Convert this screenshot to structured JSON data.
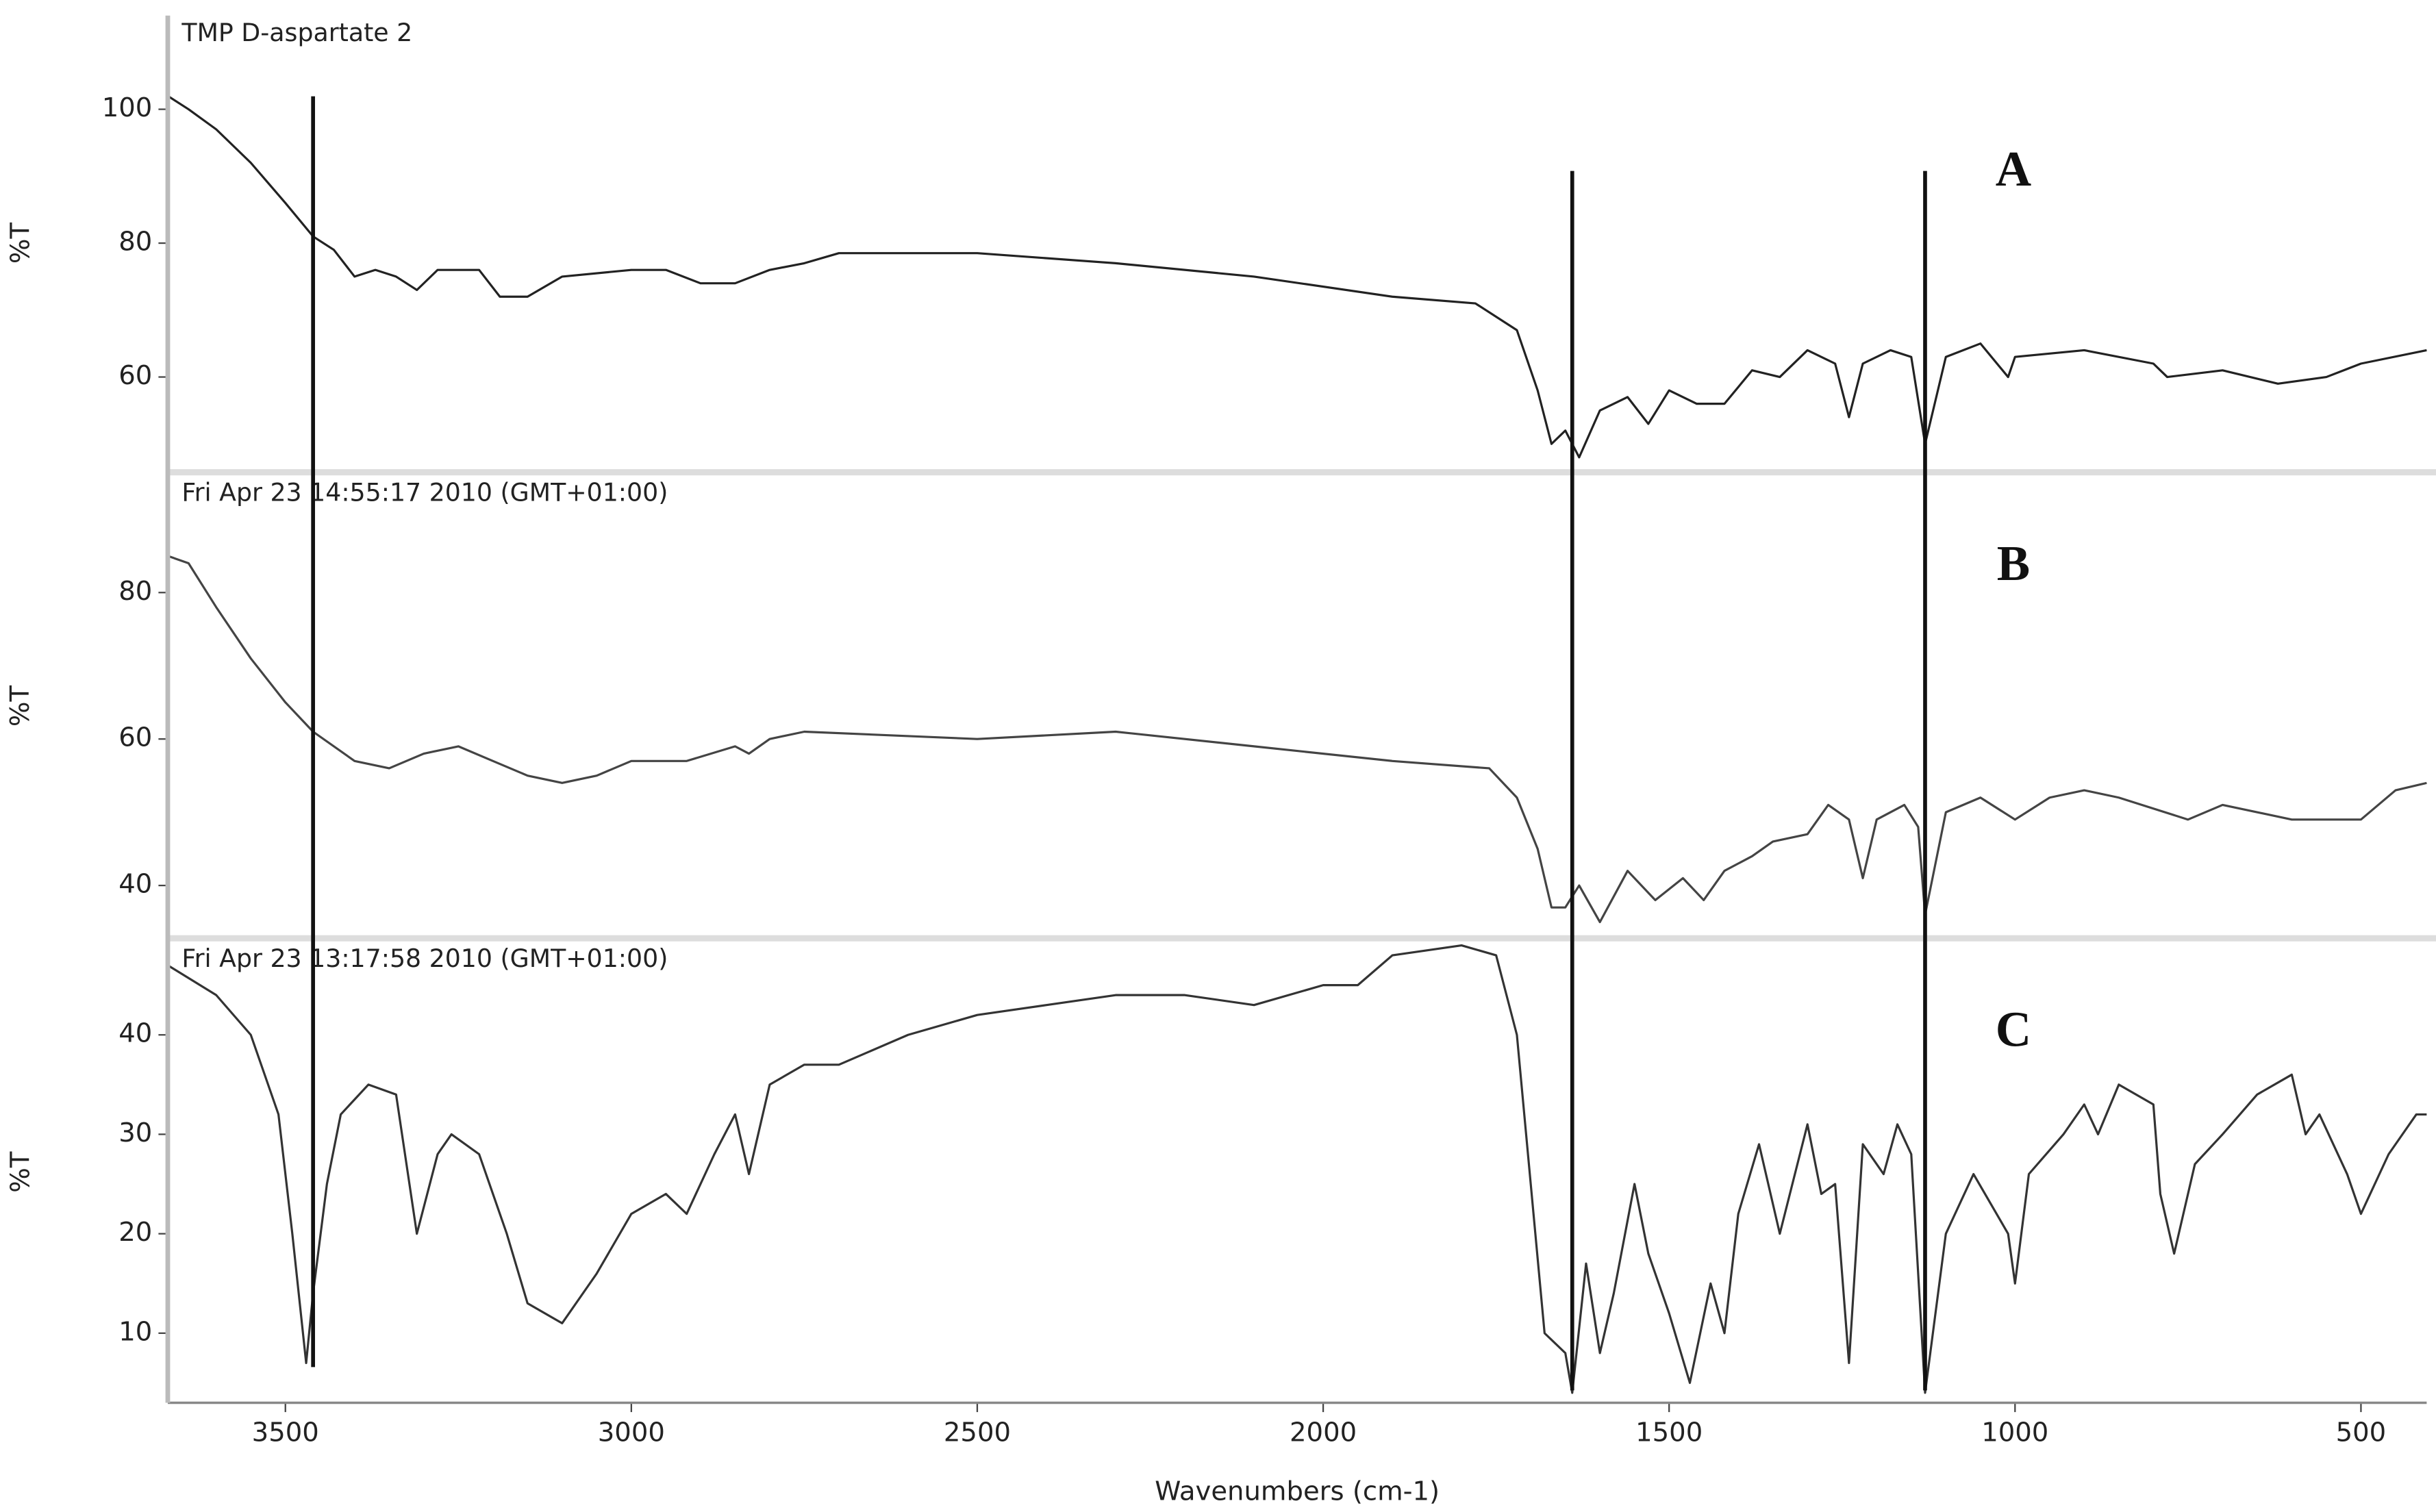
{
  "chart_data": [
    {
      "type": "line",
      "title": "TMP D-aspartate 2",
      "annotation": "A",
      "ylabel": "%T",
      "xlim": [
        3670,
        405
      ],
      "ylim": [
        46,
        114
      ],
      "yticks": [
        60,
        80,
        100
      ],
      "color": "#222222",
      "x": [
        3670,
        3640,
        3600,
        3550,
        3500,
        3460,
        3430,
        3400,
        3370,
        3340,
        3310,
        3280,
        3220,
        3190,
        3150,
        3100,
        3000,
        2950,
        2900,
        2850,
        2800,
        2750,
        2700,
        2500,
        2300,
        2100,
        1900,
        1780,
        1720,
        1690,
        1670,
        1650,
        1630,
        1600,
        1560,
        1530,
        1500,
        1460,
        1420,
        1380,
        1340,
        1300,
        1260,
        1240,
        1220,
        1180,
        1150,
        1130,
        1100,
        1050,
        1010,
        1000,
        900,
        800,
        780,
        700,
        620,
        550,
        500,
        405
      ],
      "values": [
        102,
        100,
        97,
        92,
        86,
        81,
        79,
        75,
        76,
        75,
        73,
        76,
        76,
        72,
        72,
        75,
        76,
        76,
        74,
        74,
        76,
        77,
        78.5,
        78.5,
        77,
        75,
        72,
        71,
        67,
        58,
        50,
        52,
        48,
        55,
        57,
        53,
        58,
        56,
        56,
        61,
        60,
        64,
        62,
        54,
        62,
        64,
        63,
        50,
        63,
        65,
        60,
        63,
        64,
        62,
        60,
        61,
        59,
        60,
        62,
        64
      ]
    },
    {
      "type": "line",
      "title": "Fri Apr 23 14:55:17 2010 (GMT+01:00)",
      "annotation": "B",
      "ylabel": "%T",
      "xlim": [
        3670,
        405
      ],
      "ylim": [
        33,
        96
      ],
      "yticks": [
        40,
        60,
        80
      ],
      "color": "#444444",
      "x": [
        3670,
        3640,
        3600,
        3550,
        3500,
        3460,
        3400,
        3350,
        3300,
        3250,
        3200,
        3150,
        3100,
        3050,
        3000,
        2920,
        2850,
        2830,
        2800,
        2750,
        2500,
        2300,
        2100,
        1900,
        1760,
        1720,
        1690,
        1670,
        1650,
        1630,
        1600,
        1560,
        1520,
        1480,
        1450,
        1420,
        1380,
        1350,
        1300,
        1270,
        1240,
        1220,
        1200,
        1160,
        1140,
        1130,
        1100,
        1050,
        1000,
        950,
        900,
        850,
        750,
        700,
        600,
        500,
        450,
        405
      ],
      "values": [
        85,
        84,
        78,
        71,
        65,
        61,
        57,
        56,
        58,
        59,
        57,
        55,
        54,
        55,
        57,
        57,
        59,
        58,
        60,
        61,
        60,
        61,
        59,
        57,
        56,
        52,
        45,
        37,
        37,
        40,
        35,
        42,
        38,
        41,
        38,
        42,
        44,
        46,
        47,
        51,
        49,
        41,
        49,
        51,
        48,
        36,
        50,
        52,
        49,
        52,
        53,
        52,
        49,
        51,
        49,
        49,
        53,
        54
      ]
    },
    {
      "type": "line",
      "title": "Fri Apr 23 13:17:58 2010 (GMT+01:00)",
      "annotation": "C",
      "ylabel": "%T",
      "xlabel": "Wavenumbers (cm-1)",
      "xlim": [
        3670,
        405
      ],
      "xticks": [
        3500,
        3000,
        2500,
        2000,
        1500,
        1000,
        500
      ],
      "ylim": [
        3,
        49.4
      ],
      "yticks": [
        10,
        20,
        30,
        40
      ],
      "color": "#333333",
      "x": [
        3670,
        3600,
        3550,
        3510,
        3490,
        3470,
        3460,
        3440,
        3420,
        3380,
        3340,
        3310,
        3280,
        3260,
        3220,
        3180,
        3150,
        3100,
        3050,
        3000,
        2950,
        2920,
        2880,
        2850,
        2830,
        2800,
        2750,
        2700,
        2600,
        2500,
        2400,
        2300,
        2200,
        2100,
        2000,
        1950,
        1900,
        1800,
        1750,
        1720,
        1700,
        1680,
        1650,
        1640,
        1620,
        1600,
        1580,
        1550,
        1530,
        1500,
        1470,
        1440,
        1420,
        1400,
        1370,
        1340,
        1300,
        1280,
        1260,
        1240,
        1220,
        1190,
        1170,
        1150,
        1130,
        1100,
        1060,
        1010,
        1000,
        980,
        930,
        900,
        880,
        850,
        800,
        790,
        770,
        740,
        700,
        650,
        600,
        580,
        560,
        520,
        500,
        460,
        420,
        405
      ],
      "values": [
        47,
        44,
        40,
        32,
        20,
        7,
        14,
        25,
        32,
        35,
        34,
        20,
        28,
        30,
        28,
        20,
        13,
        11,
        16,
        22,
        24,
        22,
        28,
        32,
        26,
        35,
        37,
        37,
        40,
        42,
        43,
        44,
        44,
        43,
        45,
        45,
        48,
        49,
        48,
        40,
        25,
        10,
        8,
        4,
        17,
        8,
        14,
        25,
        18,
        12,
        5,
        15,
        10,
        22,
        29,
        20,
        31,
        24,
        25,
        7,
        29,
        26,
        31,
        28,
        4,
        20,
        26,
        20,
        15,
        26,
        30,
        33,
        30,
        35,
        33,
        24,
        18,
        27,
        30,
        34,
        36,
        30,
        32,
        26,
        22,
        28,
        32,
        32
      ]
    }
  ],
  "marker_lines": [
    3460,
    1640,
    1130
  ]
}
